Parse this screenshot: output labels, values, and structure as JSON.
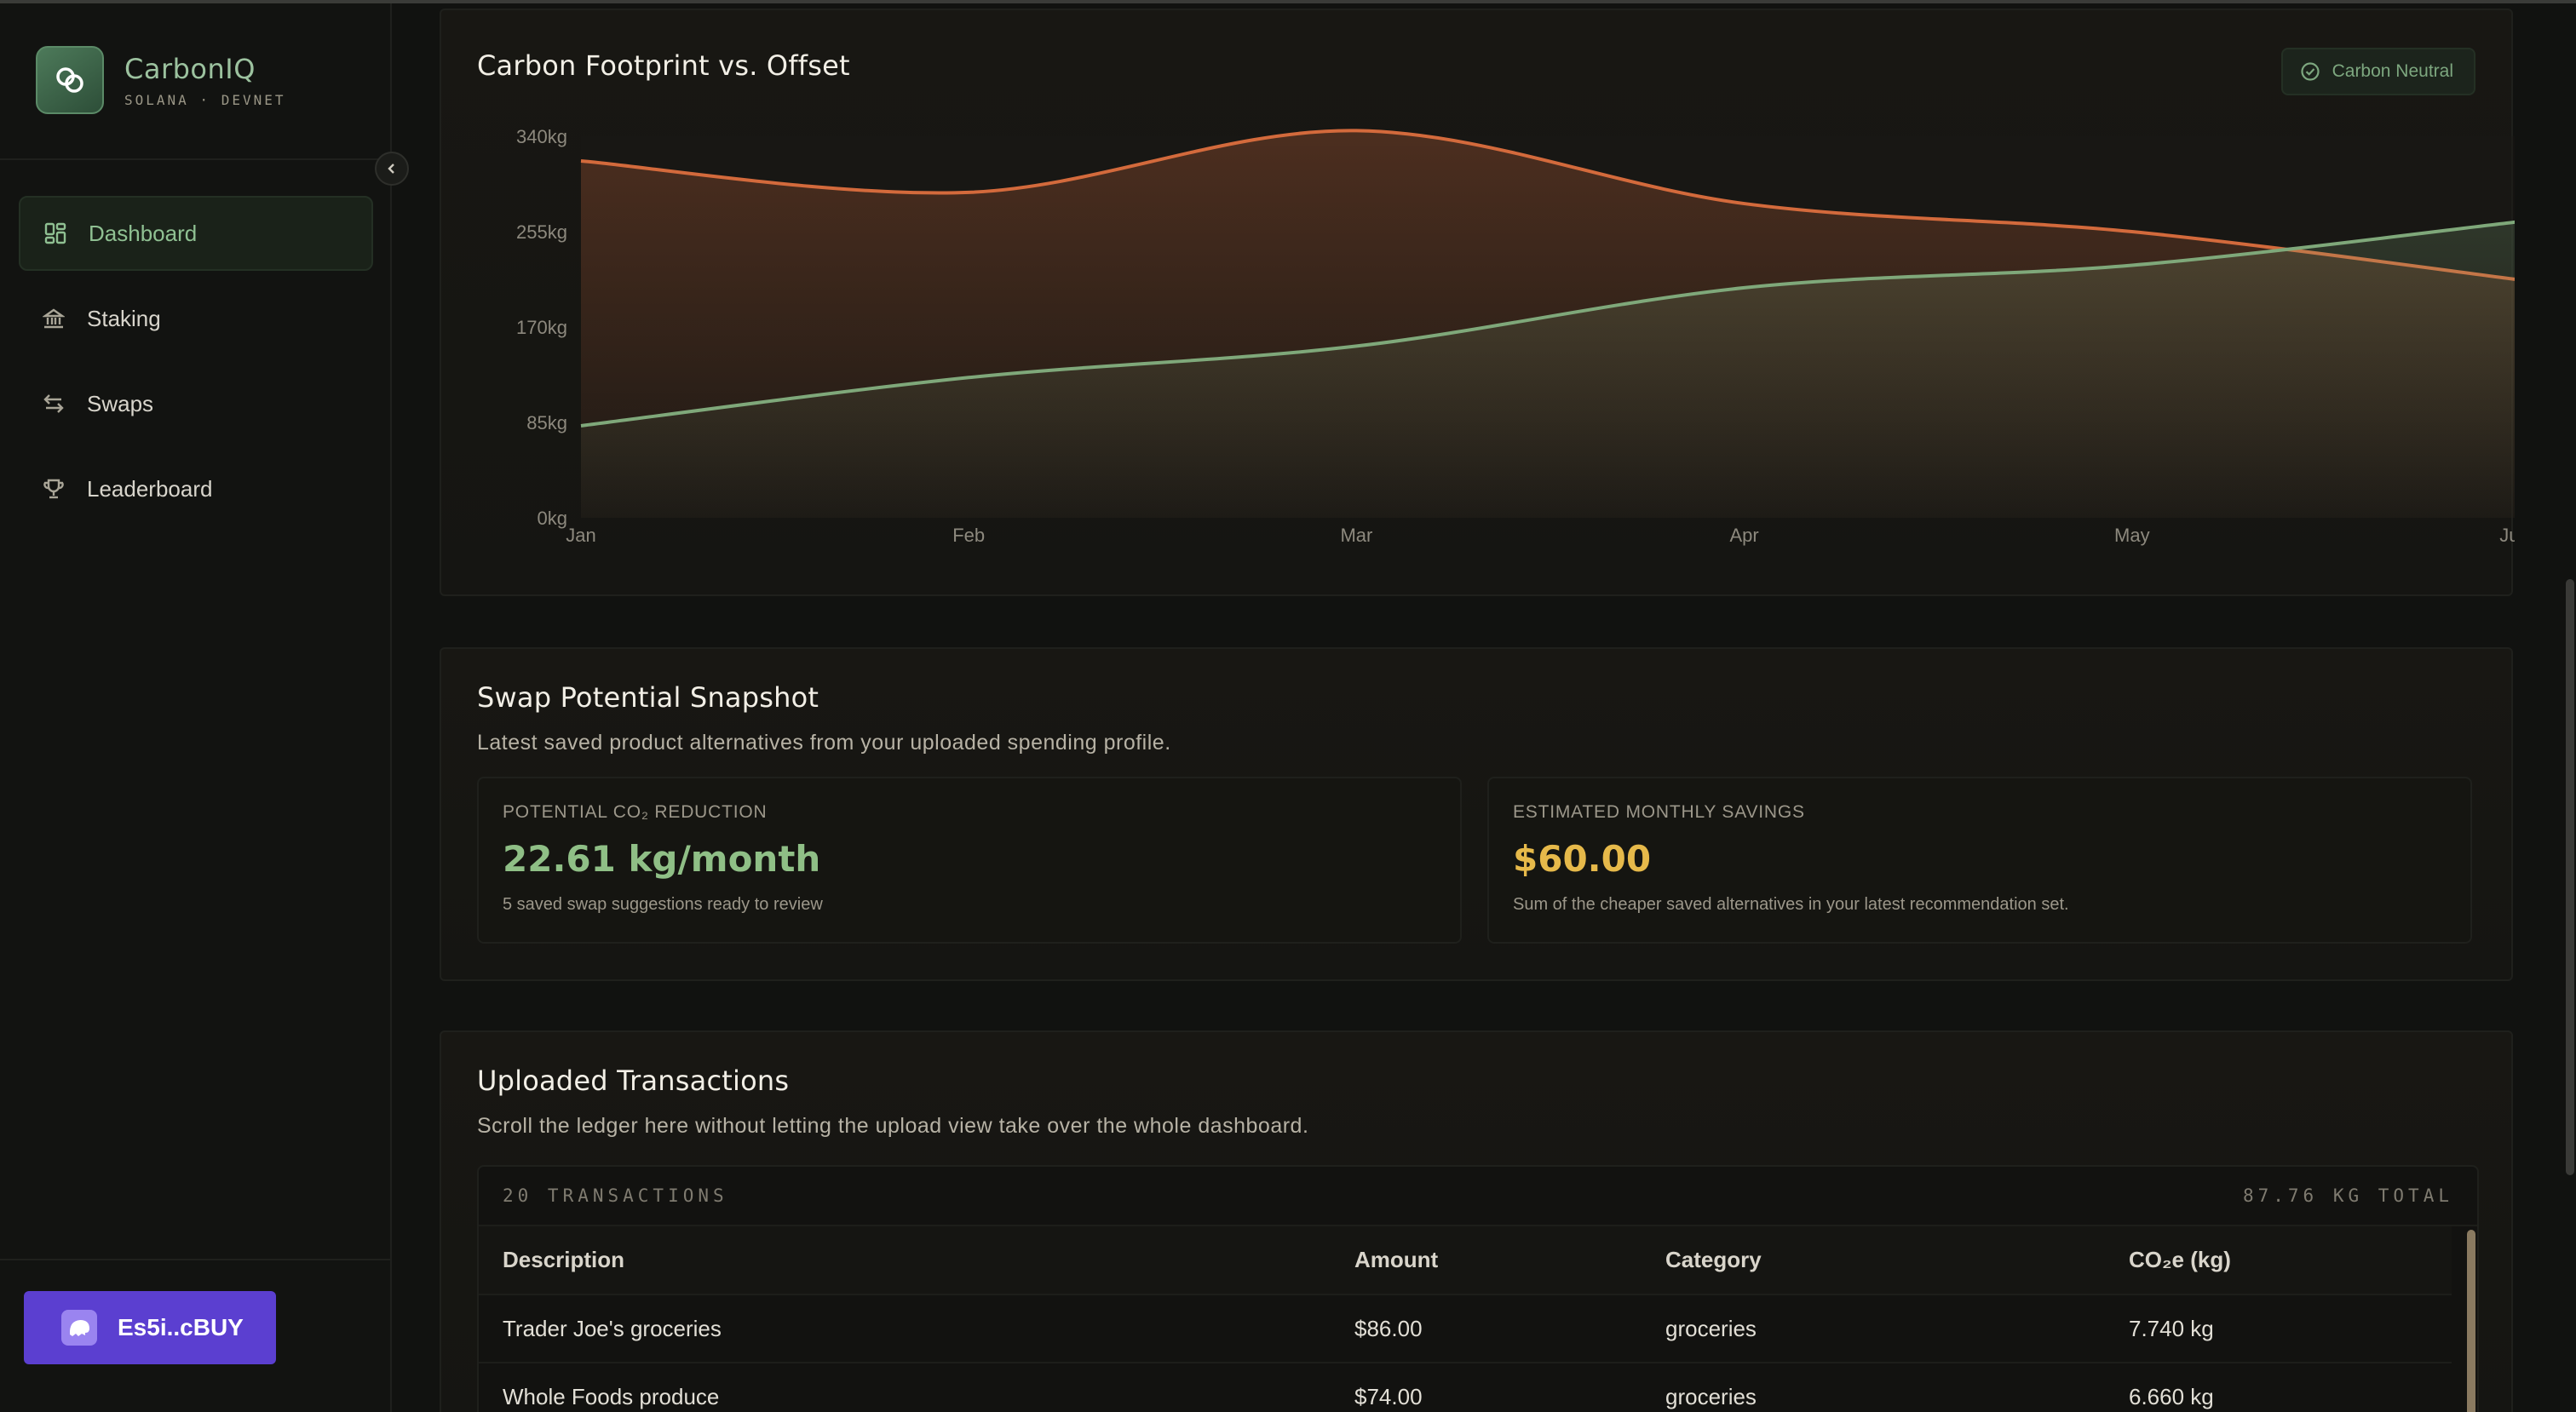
{
  "brand": {
    "name": "CarbonIQ",
    "sub": "SOLANA · DEVNET"
  },
  "nav": [
    {
      "label": "Dashboard",
      "icon": "dashboard-icon",
      "active": true
    },
    {
      "label": "Staking",
      "icon": "bank-icon",
      "active": false
    },
    {
      "label": "Swaps",
      "icon": "swap-arrows-icon",
      "active": false
    },
    {
      "label": "Leaderboard",
      "icon": "trophy-icon",
      "active": false
    }
  ],
  "wallet": {
    "label": "Es5i..cBUY"
  },
  "chart_card": {
    "title": "Carbon Footprint vs. Offset",
    "badge": "Carbon Neutral"
  },
  "chart_data": {
    "type": "area",
    "categories": [
      "Jan",
      "Feb",
      "Mar",
      "Apr",
      "May",
      "Jun"
    ],
    "y_ticks": [
      "0kg",
      "85kg",
      "170kg",
      "255kg",
      "340kg"
    ],
    "ylim": [
      0,
      340
    ],
    "series": [
      {
        "values": [
          318,
          290,
          345,
          280,
          255,
          212
        ],
        "color": "#d36a3c"
      },
      {
        "values": [
          82,
          125,
          153,
          205,
          225,
          264
        ],
        "color": "#7fa87a"
      }
    ]
  },
  "snapshot": {
    "title": "Swap Potential Snapshot",
    "subtitle": "Latest saved product alternatives from your uploaded spending profile.",
    "reduction": {
      "label": "POTENTIAL CO₂ REDUCTION",
      "value": "22.61 kg/month",
      "note": "5 saved swap suggestions ready to review",
      "color": "#8fbf86"
    },
    "savings": {
      "label": "ESTIMATED MONTHLY SAVINGS",
      "value": "$60.00",
      "note": "Sum of the cheaper saved alternatives in your latest recommendation set.",
      "color": "#e6b94a"
    }
  },
  "transactions": {
    "title": "Uploaded Transactions",
    "subtitle": "Scroll the ledger here without letting the upload view take over the whole dashboard.",
    "count_label": "20 TRANSACTIONS",
    "total_label": "87.76 KG TOTAL",
    "columns": [
      "Description",
      "Amount",
      "Category",
      "CO₂e (kg)"
    ],
    "rows": [
      [
        "Trader Joe's groceries",
        "$86.00",
        "groceries",
        "7.740 kg"
      ],
      [
        "Whole Foods produce",
        "$74.00",
        "groceries",
        "6.660 kg"
      ]
    ]
  }
}
